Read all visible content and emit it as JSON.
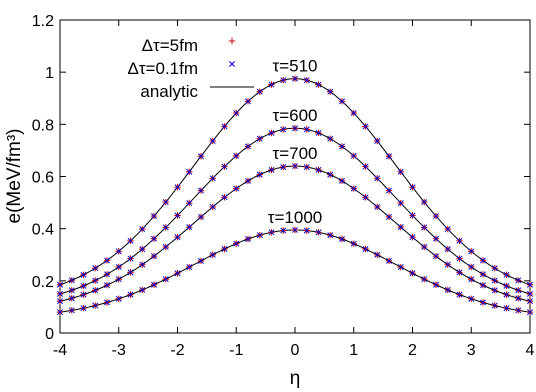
{
  "chart_data": {
    "type": "scatter",
    "xlabel": "η",
    "ylabel": "e(MeV/fm³)",
    "xlim": [
      -4,
      4
    ],
    "ylim": [
      0,
      1.2
    ],
    "xticks": [
      -4,
      -3,
      -2,
      -1,
      0,
      1,
      2,
      3,
      4
    ],
    "yticks": [
      0,
      0.2,
      0.4,
      0.6,
      0.8,
      1,
      1.2
    ],
    "xtick_labels": [
      "-4",
      "-3",
      "-2",
      "-1",
      "0",
      "1",
      "2",
      "3",
      "4"
    ],
    "ytick_labels": [
      "0",
      "0.2",
      "0.4",
      "0.6",
      "0.8",
      "1",
      "1.2"
    ],
    "grid": false,
    "legend_position": "top-left",
    "legend": [
      {
        "label": "Δτ=5fm",
        "marker": "plus",
        "color": "#cc0000"
      },
      {
        "label": "Δτ=0.1fm",
        "marker": "cross",
        "color": "#0000cc"
      },
      {
        "label": "analytic",
        "marker": "line",
        "color": "#000000"
      }
    ],
    "eta_samples": [
      -4,
      -3.8,
      -3.6,
      -3.4,
      -3.2,
      -3,
      -2.8,
      -2.6,
      -2.4,
      -2.2,
      -2,
      -1.8,
      -1.6,
      -1.4,
      -1.2,
      -1,
      -0.8,
      -0.6,
      -0.4,
      -0.2,
      0,
      0.2,
      0.4,
      0.6,
      0.8,
      1,
      1.2,
      1.4,
      1.6,
      1.8,
      2,
      2.2,
      2.4,
      2.6,
      2.8,
      3,
      3.2,
      3.4,
      3.6,
      3.8,
      4
    ],
    "curves": [
      {
        "annotation": "τ=510",
        "peak": 0.975,
        "edge": 0.185,
        "width": 1.72
      },
      {
        "annotation": "τ=600",
        "peak": 0.785,
        "edge": 0.15,
        "width": 1.72
      },
      {
        "annotation": "τ=700",
        "peak": 0.64,
        "edge": 0.122,
        "width": 1.72
      },
      {
        "annotation": "τ=1000",
        "peak": 0.395,
        "edge": 0.08,
        "width": 1.72
      }
    ]
  }
}
